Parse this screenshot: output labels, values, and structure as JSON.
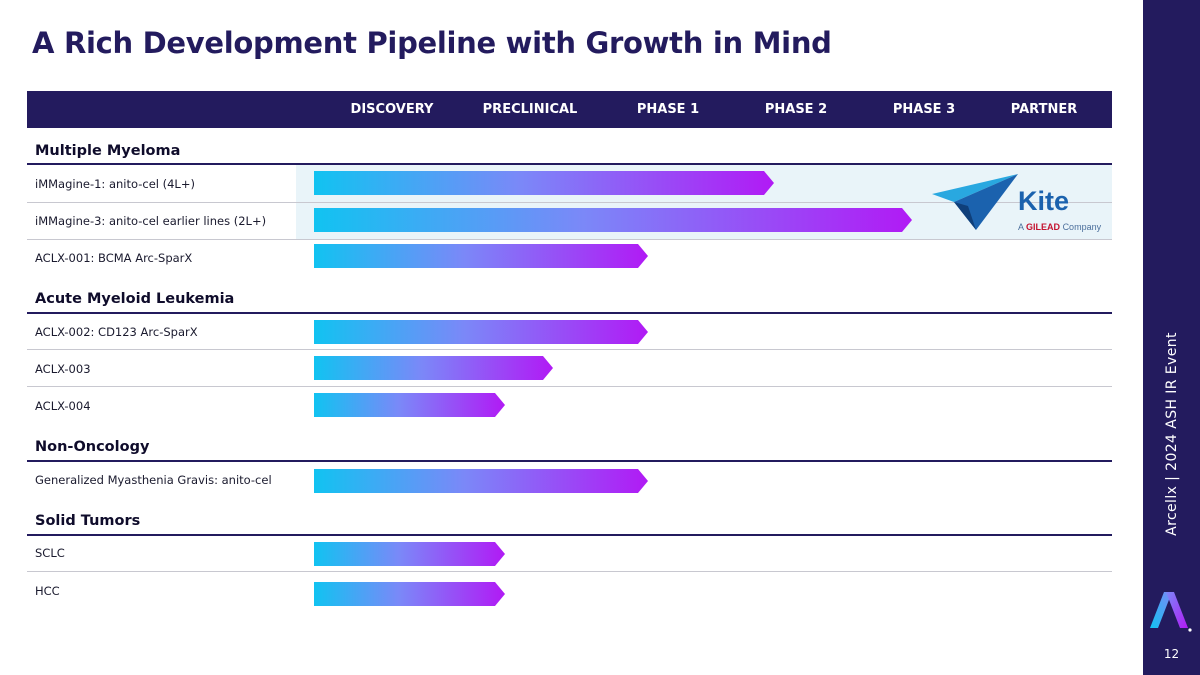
{
  "slide": {
    "title": "A Rich Development Pipeline with Growth in Mind",
    "page_number": "12",
    "sidebar_label": "Arcellx  |  2024 ASH IR Event"
  },
  "phases": [
    "DISCOVERY",
    "PRECLINICAL",
    "PHASE 1",
    "PHASE 2",
    "PHASE 3",
    "PARTNER"
  ],
  "categories": [
    {
      "name": "Multiple Myeloma",
      "programs": [
        {
          "name": "iMMagine-1: anito-cel (4L+)",
          "stage_reached": "PHASE 2",
          "partner": "Kite"
        },
        {
          "name": "iMMagine-3: anito-cel earlier lines (2L+)",
          "stage_reached": "PHASE 3",
          "partner": "Kite"
        },
        {
          "name": "ACLX-001: BCMA Arc-SparX",
          "stage_reached": "PHASE 1"
        }
      ]
    },
    {
      "name": "Acute Myeloid Leukemia",
      "programs": [
        {
          "name": "ACLX-002: CD123 Arc-SparX",
          "stage_reached": "PHASE 1"
        },
        {
          "name": "ACLX-003",
          "stage_reached": "PRECLINICAL"
        },
        {
          "name": "ACLX-004",
          "stage_reached": "PRECLINICAL"
        }
      ]
    },
    {
      "name": "Non-Oncology",
      "programs": [
        {
          "name": "Generalized Myasthenia Gravis: anito-cel",
          "stage_reached": "PHASE 1"
        }
      ]
    },
    {
      "name": "Solid Tumors",
      "programs": [
        {
          "name": "SCLC",
          "stage_reached": "PRECLINICAL"
        },
        {
          "name": "HCC",
          "stage_reached": "PRECLINICAL"
        }
      ]
    }
  ],
  "partner_logo": {
    "name": "Kite",
    "tagline_prefix": "A",
    "tagline_brand": "GILEAD",
    "tagline_suffix": "Company"
  },
  "colors": {
    "navy": "#231b5e",
    "bar_start": "#11c3f1",
    "bar_mid": "#7b88f8",
    "bar_end": "#b11af5",
    "partner_band": "#e9f4f9",
    "kite_blue": "#1b62ae",
    "gilead_red": "#c4122f"
  }
}
